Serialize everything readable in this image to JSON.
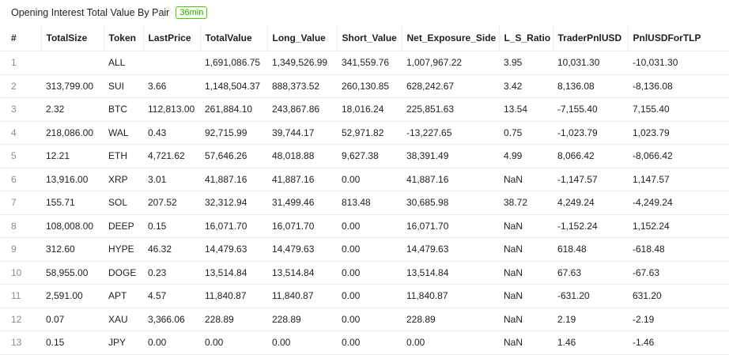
{
  "header": {
    "title": "Opening Interest Total Value By Pair",
    "badge": "36min"
  },
  "table": {
    "columns": [
      "#",
      "TotalSize",
      "Token",
      "LastPrice",
      "TotalValue",
      "Long_Value",
      "Short_Value",
      "Net_Exposure_Side",
      "L_S_Ratio",
      "TraderPnlUSD",
      "PnlUSDForTLP"
    ],
    "rows": [
      [
        "1",
        null,
        "ALL",
        null,
        "1,691,086.75",
        "1,349,526.99",
        "341,559.76",
        "1,007,967.22",
        "3.95",
        "10,031.30",
        "-10,031.30"
      ],
      [
        "2",
        "313,799.00",
        "SUI",
        "3.66",
        "1,148,504.37",
        "888,373.52",
        "260,130.85",
        "628,242.67",
        "3.42",
        "8,136.08",
        "-8,136.08"
      ],
      [
        "3",
        "2.32",
        "BTC",
        "112,813.00",
        "261,884.10",
        "243,867.86",
        "18,016.24",
        "225,851.63",
        "13.54",
        "-7,155.40",
        "7,155.40"
      ],
      [
        "4",
        "218,086.00",
        "WAL",
        "0.43",
        "92,715.99",
        "39,744.17",
        "52,971.82",
        "-13,227.65",
        "0.75",
        "-1,023.79",
        "1,023.79"
      ],
      [
        "5",
        "12.21",
        "ETH",
        "4,721.62",
        "57,646.26",
        "48,018.88",
        "9,627.38",
        "38,391.49",
        "4.99",
        "8,066.42",
        "-8,066.42"
      ],
      [
        "6",
        "13,916.00",
        "XRP",
        "3.01",
        "41,887.16",
        "41,887.16",
        "0.00",
        "41,887.16",
        "NaN",
        "-1,147.57",
        "1,147.57"
      ],
      [
        "7",
        "155.71",
        "SOL",
        "207.52",
        "32,312.94",
        "31,499.46",
        "813.48",
        "30,685.98",
        "38.72",
        "4,249.24",
        "-4,249.24"
      ],
      [
        "8",
        "108,008.00",
        "DEEP",
        "0.15",
        "16,071.70",
        "16,071.70",
        "0.00",
        "16,071.70",
        "NaN",
        "-1,152.24",
        "1,152.24"
      ],
      [
        "9",
        "312.60",
        "HYPE",
        "46.32",
        "14,479.63",
        "14,479.63",
        "0.00",
        "14,479.63",
        "NaN",
        "618.48",
        "-618.48"
      ],
      [
        "10",
        "58,955.00",
        "DOGE",
        "0.23",
        "13,514.84",
        "13,514.84",
        "0.00",
        "13,514.84",
        "NaN",
        "67.63",
        "-67.63"
      ],
      [
        "11",
        "2,591.00",
        "APT",
        "4.57",
        "11,840.87",
        "11,840.87",
        "0.00",
        "11,840.87",
        "NaN",
        "-631.20",
        "631.20"
      ],
      [
        "12",
        "0.07",
        "XAU",
        "3,366.06",
        "228.89",
        "228.89",
        "0.00",
        "228.89",
        "NaN",
        "2.19",
        "-2.19"
      ],
      [
        "13",
        "0.15",
        "JPY",
        "0.00",
        "0.00",
        "0.00",
        "0.00",
        "0.00",
        "NaN",
        "1.46",
        "-1.46"
      ]
    ]
  }
}
